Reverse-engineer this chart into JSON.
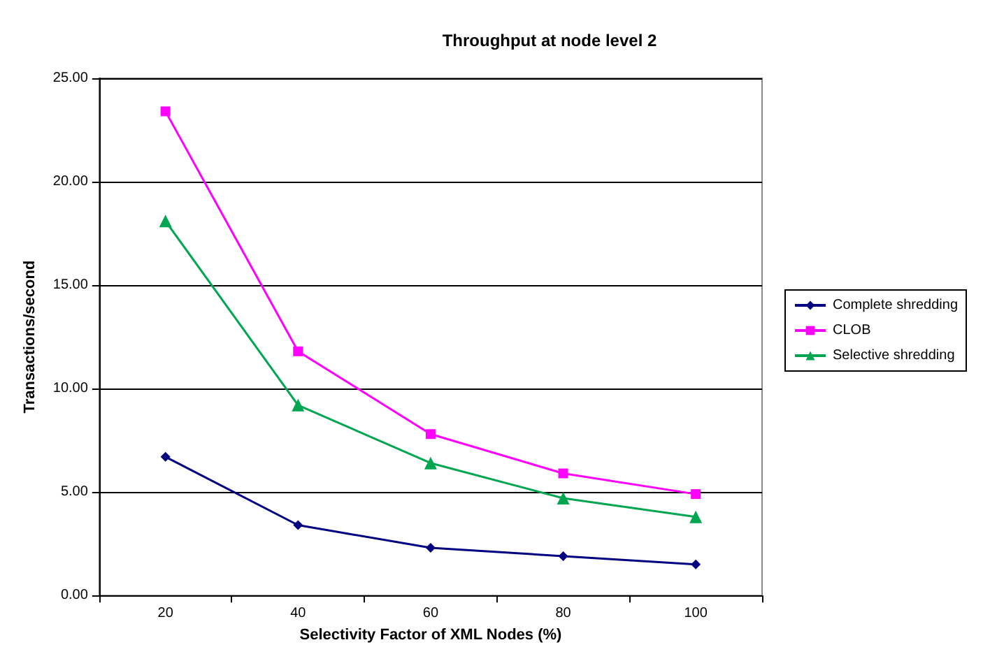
{
  "chart_data": {
    "type": "line",
    "title": "Throughput at node level 2",
    "xlabel": "Selectivity Factor of XML Nodes (%)",
    "ylabel": "Transactions/second",
    "categories": [
      "20",
      "40",
      "60",
      "80",
      "100"
    ],
    "series": [
      {
        "name": "Complete shredding",
        "color": "#000080",
        "marker": "diamond",
        "values": [
          6.7,
          3.4,
          2.3,
          1.9,
          1.5
        ]
      },
      {
        "name": "CLOB",
        "color": "#ff00ff",
        "marker": "square",
        "values": [
          23.4,
          11.8,
          7.8,
          5.9,
          4.9
        ]
      },
      {
        "name": "Selective shredding",
        "color": "#00a650",
        "marker": "triangle",
        "values": [
          18.1,
          9.2,
          6.4,
          4.7,
          3.8
        ]
      }
    ],
    "ylim": [
      0,
      25
    ],
    "yticks": [
      {
        "value": 0,
        "label": "0.00"
      },
      {
        "value": 5,
        "label": "5.00"
      },
      {
        "value": 10,
        "label": "10.00"
      },
      {
        "value": 15,
        "label": "15.00"
      },
      {
        "value": 20,
        "label": "20.00"
      },
      {
        "value": 25,
        "label": "25.00"
      }
    ],
    "grid": "y",
    "legend": "right",
    "line_style": "solid"
  }
}
